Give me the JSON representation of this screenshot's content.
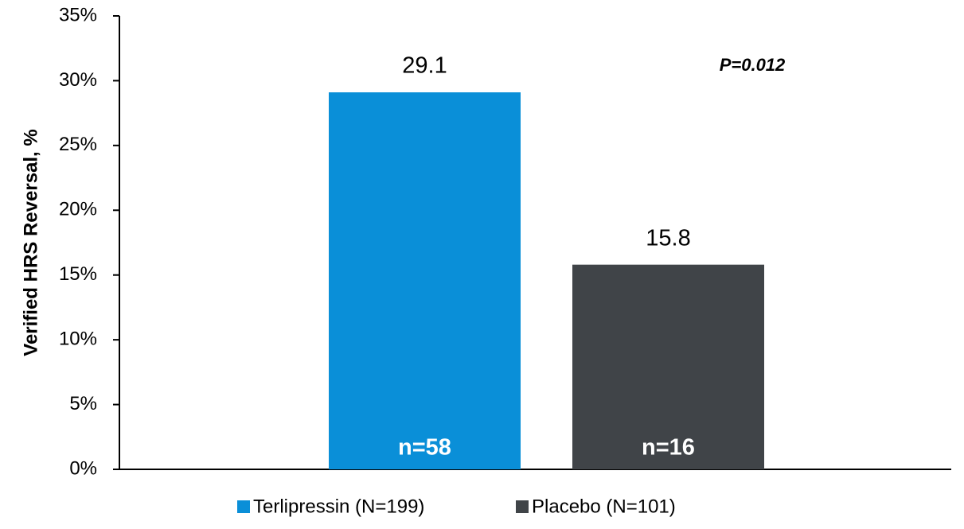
{
  "chart_data": {
    "type": "bar",
    "y_label": "Verified HRS Reversal, %",
    "categories": [
      null
    ],
    "series": [
      {
        "name": "Terlipressin (N=199)",
        "color": "#0a8fd8",
        "values": [
          29.1
        ],
        "annotations": [
          "n=58"
        ]
      },
      {
        "name": "Placebo (N=101)",
        "color": "#404448",
        "values": [
          15.8
        ],
        "annotations": [
          "n=16"
        ]
      }
    ],
    "annotation": "P=0.012",
    "ylim": [
      0,
      35
    ],
    "yticks": [
      {
        "value": 0,
        "label": "0%"
      },
      {
        "value": 5,
        "label": "5%"
      },
      {
        "value": 10,
        "label": "10%"
      },
      {
        "value": 15,
        "label": "15%"
      },
      {
        "value": 20,
        "label": "20%"
      },
      {
        "value": 25,
        "label": "25%"
      },
      {
        "value": 30,
        "label": "30%"
      },
      {
        "value": 35,
        "label": "35%"
      }
    ],
    "grid": false,
    "legend": "bottom"
  }
}
